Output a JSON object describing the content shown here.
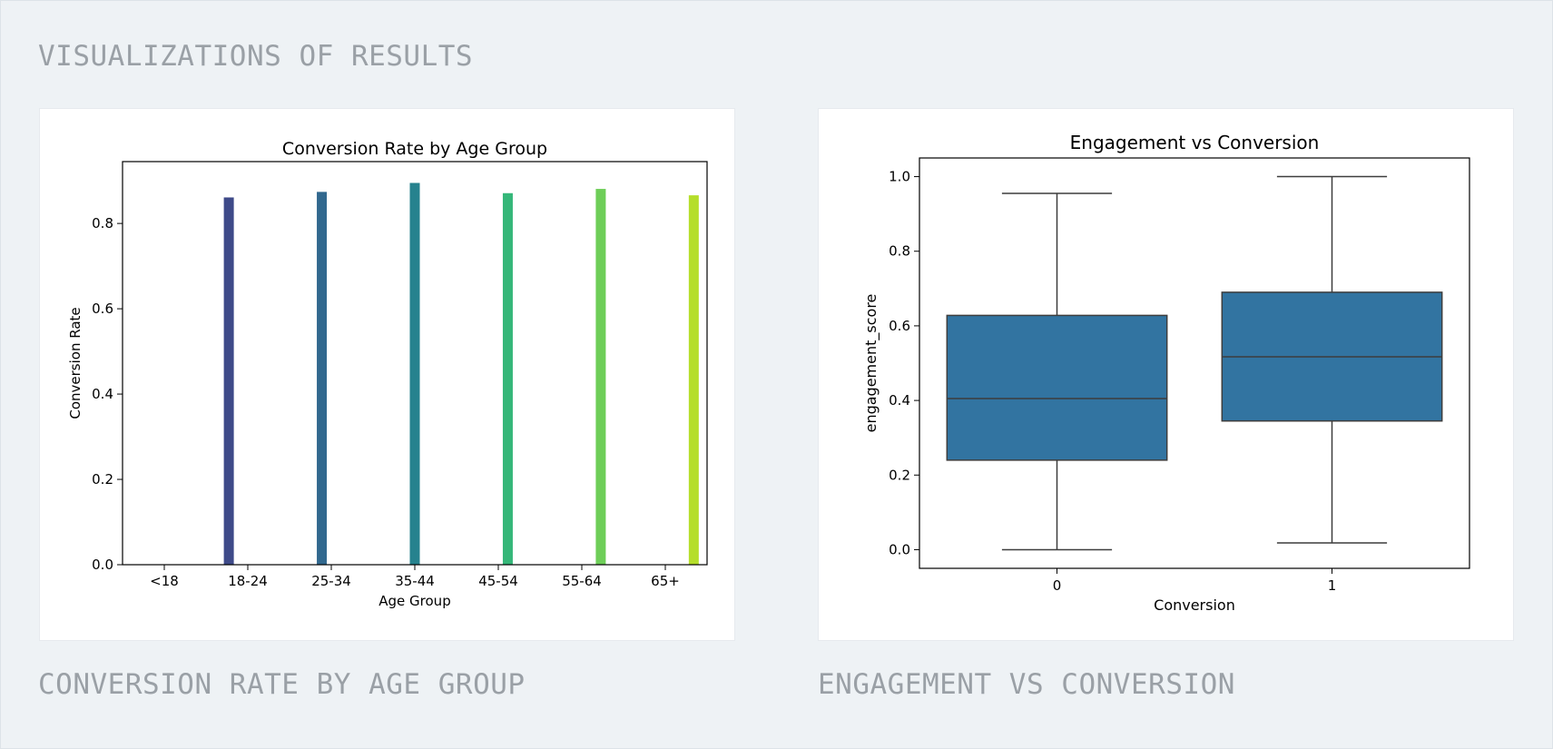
{
  "page": {
    "section_title": "VISUALIZATIONS OF RESULTS",
    "captions": [
      "CONVERSION RATE BY AGE GROUP",
      "ENGAGEMENT VS CONVERSION"
    ]
  },
  "chart_data": [
    {
      "type": "bar",
      "title": "Conversion Rate by Age Group",
      "xlabel": "Age Group",
      "ylabel": "Conversion Rate",
      "categories": [
        "<18",
        "18-24",
        "25-34",
        "35-44",
        "45-54",
        "55-64",
        "65+"
      ],
      "values": [
        null,
        0.861,
        0.874,
        0.895,
        0.871,
        0.881,
        0.866
      ],
      "colors": [
        "#482878",
        "#3e4a89",
        "#31688e",
        "#26828e",
        "#35b779",
        "#6ece58",
        "#b5de2b"
      ],
      "ylim": [
        0,
        0.945
      ],
      "yticks": [
        0.0,
        0.2,
        0.4,
        0.6,
        0.8
      ],
      "yticklabels": [
        "0.0",
        "0.2",
        "0.4",
        "0.6",
        "0.8"
      ],
      "grid": false
    },
    {
      "type": "box",
      "title": "Engagement vs Conversion",
      "xlabel": "Conversion",
      "ylabel": "engagement_score",
      "categories": [
        "0",
        "1"
      ],
      "boxes": [
        {
          "whisker_low": 0.0,
          "q1": 0.24,
          "median": 0.405,
          "q3": 0.628,
          "whisker_high": 0.955
        },
        {
          "whisker_low": 0.018,
          "q1": 0.345,
          "median": 0.517,
          "q3": 0.69,
          "whisker_high": 1.0
        }
      ],
      "color": "#3274a1",
      "ylim": [
        -0.05,
        1.05
      ],
      "yticks": [
        0.0,
        0.2,
        0.4,
        0.6,
        0.8,
        1.0
      ],
      "yticklabels": [
        "0.0",
        "0.2",
        "0.4",
        "0.6",
        "0.8",
        "1.0"
      ],
      "grid": false
    }
  ]
}
